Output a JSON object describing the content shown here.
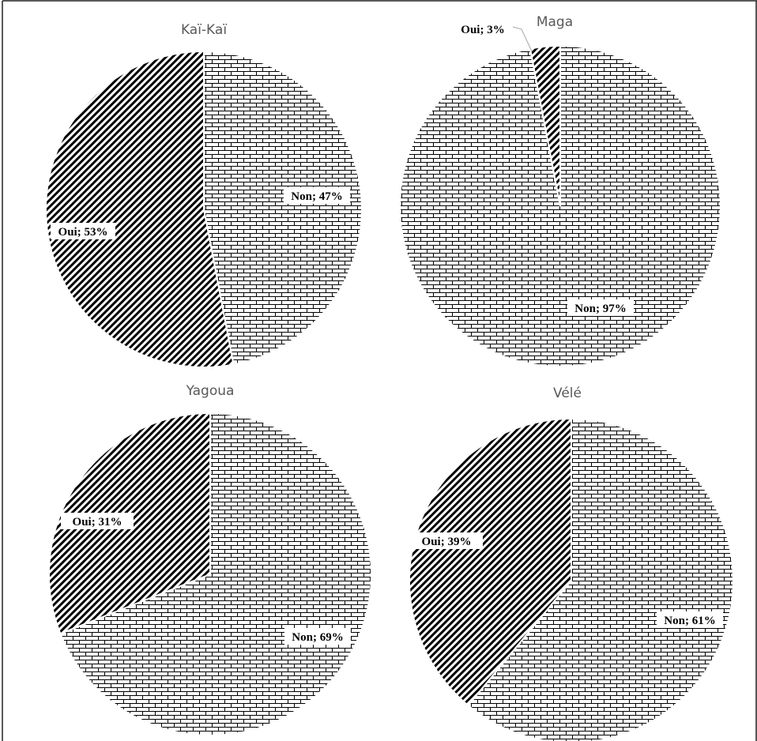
{
  "chart_data": [
    {
      "type": "pie",
      "title": "Kaï-Kaï",
      "slices": [
        {
          "label": "Non",
          "value": 47,
          "text": "Non; 47%"
        },
        {
          "label": "Oui",
          "value": 53,
          "text": "Oui; 53%"
        }
      ]
    },
    {
      "type": "pie",
      "title": "Maga",
      "slices": [
        {
          "label": "Non",
          "value": 97,
          "text": "Non; 97%"
        },
        {
          "label": "Oui",
          "value": 3,
          "text": "Oui; 3%"
        }
      ]
    },
    {
      "type": "pie",
      "title": "Yagoua",
      "slices": [
        {
          "label": "Non",
          "value": 69,
          "text": "Non; 69%"
        },
        {
          "label": "Oui",
          "value": 31,
          "text": "Oui; 31%"
        }
      ]
    },
    {
      "type": "pie",
      "title": "Vélé",
      "slices": [
        {
          "label": "Non",
          "value": 61,
          "text": "Non; 61%"
        },
        {
          "label": "Oui",
          "value": 39,
          "text": "Oui; 39%"
        }
      ]
    }
  ],
  "patterns": {
    "Non": "brick",
    "Oui": "diagonal-stripes"
  },
  "colors": {
    "ink": "#000000",
    "background": "#ffffff",
    "title": "#595959",
    "frame": "#222222"
  }
}
